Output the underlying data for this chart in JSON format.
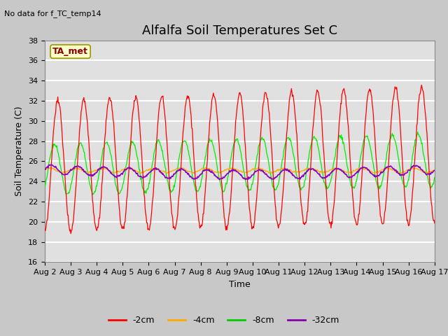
{
  "title": "Alfalfa Soil Temperatures Set C",
  "ylabel": "Soil Temperature (C)",
  "xlabel": "Time",
  "no_data_text": "No data for f_TC_temp14",
  "ta_met_label": "TA_met",
  "ylim": [
    16,
    38
  ],
  "x_tick_labels": [
    "Aug 2",
    "Aug 3",
    "Aug 4",
    "Aug 5",
    "Aug 6",
    "Aug 7",
    "Aug 8",
    "Aug 9",
    "Aug 10",
    "Aug 11",
    "Aug 12",
    "Aug 13",
    "Aug 14",
    "Aug 15",
    "Aug 16",
    "Aug 17"
  ],
  "legend_entries": [
    "-2cm",
    "-4cm",
    "-8cm",
    "-32cm"
  ],
  "legend_colors": [
    "#ff0000",
    "#ffaa00",
    "#00cc00",
    "#8800aa"
  ],
  "line_colors": {
    "red": "#ff0000",
    "orange": "#ffaa00",
    "green": "#00ee00",
    "purple": "#8800bb"
  },
  "background_color": "#c8c8c8",
  "plot_bg_color": "#e0e0e0",
  "title_fontsize": 13,
  "axis_label_fontsize": 9,
  "tick_fontsize": 8
}
